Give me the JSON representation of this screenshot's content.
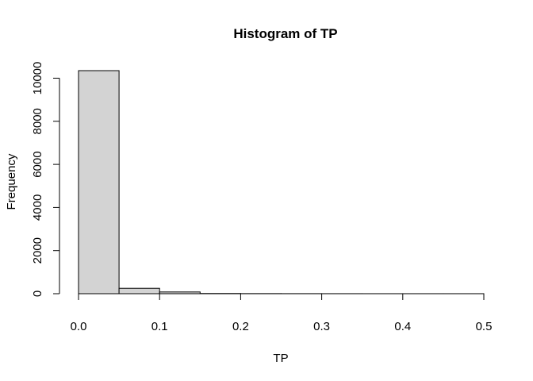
{
  "chart_data": {
    "type": "bar",
    "title": "Histogram of TP",
    "xlabel": "TP",
    "ylabel": "Frequency",
    "bin_edges": [
      0.0,
      0.05,
      0.1,
      0.15,
      0.2,
      0.25,
      0.3,
      0.35,
      0.4,
      0.45,
      0.5
    ],
    "values": [
      10350,
      250,
      80,
      10,
      5,
      3,
      2,
      1,
      1,
      1
    ],
    "xlim": [
      0,
      0.5
    ],
    "ylim": [
      0,
      10350
    ],
    "x_ticks": [
      0.0,
      0.1,
      0.2,
      0.3,
      0.4,
      0.5
    ],
    "x_tick_labels": [
      "0.0",
      "0.1",
      "0.2",
      "0.3",
      "0.4",
      "0.5"
    ],
    "y_ticks": [
      0,
      2000,
      4000,
      6000,
      8000,
      10000
    ],
    "y_tick_labels": [
      "0",
      "2000",
      "4000",
      "6000",
      "8000",
      "10000"
    ],
    "grid": false,
    "legend": "none",
    "bar_fill": "#d3d3d3",
    "bar_stroke": "#000000"
  }
}
